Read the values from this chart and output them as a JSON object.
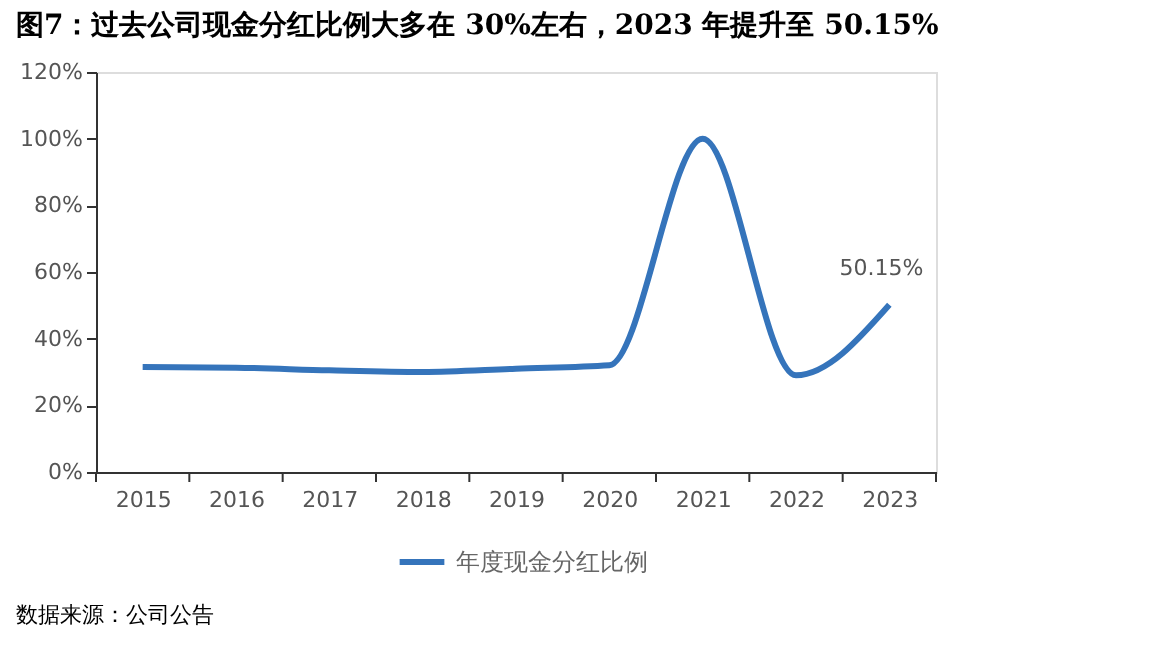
{
  "chart_data": {
    "type": "line",
    "title": "图7：过去公司现金分红比例大多在 30%左右，2023 年提升至 50.15%",
    "categories": [
      "2015",
      "2016",
      "2017",
      "2018",
      "2019",
      "2020",
      "2021",
      "2022",
      "2023"
    ],
    "series": [
      {
        "name": "年度现金分红比例",
        "color": "#3574bb",
        "values": [
          31.5,
          31.3,
          30.5,
          30,
          31,
          32,
          100,
          29,
          50.15
        ],
        "value_labels": [
          null,
          null,
          null,
          null,
          null,
          null,
          null,
          null,
          "50.15%"
        ]
      }
    ],
    "ylim": [
      0,
      120
    ],
    "yticks": [
      {
        "value": 0,
        "label": "0%"
      },
      {
        "value": 20,
        "label": "20%"
      },
      {
        "value": 40,
        "label": "40%"
      },
      {
        "value": 60,
        "label": "60%"
      },
      {
        "value": 80,
        "label": "80%"
      },
      {
        "value": 100,
        "label": "100%"
      },
      {
        "value": 120,
        "label": "120%"
      }
    ],
    "grid": false,
    "legend": "bottom",
    "marker": "none",
    "line_style": "solid",
    "annotations": [
      "数据来源：公司公告"
    ]
  }
}
